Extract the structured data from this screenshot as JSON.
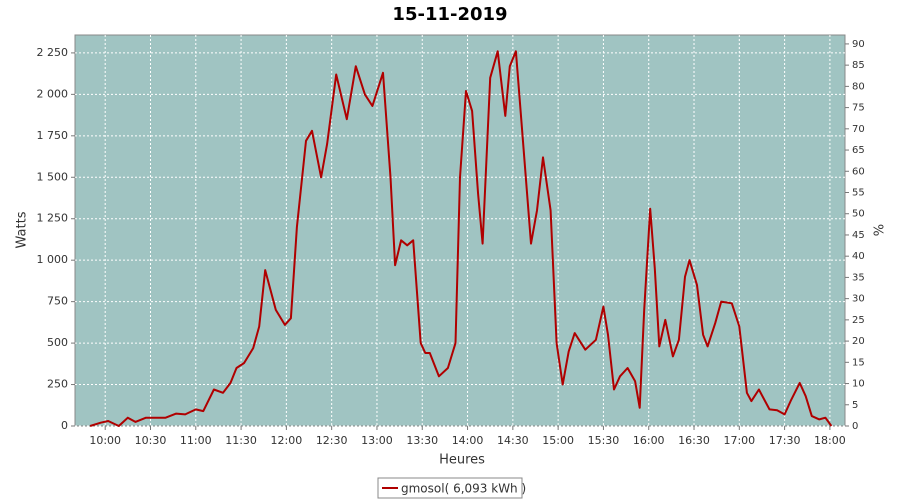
{
  "chart_data": {
    "type": "line",
    "title": "15-11-2019",
    "x_label": "Heures",
    "y_label": "Watts",
    "y2_label": "%",
    "x": [
      "09:50",
      "09:57",
      "10:02",
      "10:09",
      "10:15",
      "10:20",
      "10:27",
      "10:40",
      "10:47",
      "10:53",
      "11:00",
      "11:05",
      "11:12",
      "11:18",
      "11:23",
      "11:27",
      "11:32",
      "11:38",
      "11:42",
      "11:46",
      "11:53",
      "11:59",
      "12:03",
      "12:07",
      "12:13",
      "12:17",
      "12:23",
      "12:27",
      "12:33",
      "12:40",
      "12:46",
      "12:52",
      "12:57",
      "13:04",
      "13:09",
      "13:12",
      "13:16",
      "13:20",
      "13:24",
      "13:29",
      "13:32",
      "13:35",
      "13:41",
      "13:47",
      "13:52",
      "13:55",
      "13:59",
      "14:03",
      "14:07",
      "14:10",
      "14:15",
      "14:20",
      "14:25",
      "14:28",
      "14:32",
      "14:36",
      "14:42",
      "14:46",
      "14:50",
      "14:55",
      "14:59",
      "15:03",
      "15:07",
      "15:11",
      "15:18",
      "15:25",
      "15:30",
      "15:33",
      "15:37",
      "15:41",
      "15:46",
      "15:51",
      "15:54",
      "15:57",
      "16:01",
      "16:04",
      "16:07",
      "16:11",
      "16:16",
      "16:20",
      "16:24",
      "16:27",
      "16:32",
      "16:36",
      "16:39",
      "16:44",
      "16:48",
      "16:55",
      "17:00",
      "17:05",
      "17:08",
      "17:13",
      "17:20",
      "17:25",
      "17:30",
      "17:34",
      "17:40",
      "17:44",
      "17:48",
      "17:53",
      "17:57",
      "18:01"
    ],
    "series": [
      {
        "name": "gmosol( 6,093 kWh )",
        "color": "#b00000",
        "values": [
          0,
          20,
          30,
          0,
          50,
          25,
          50,
          50,
          75,
          70,
          100,
          90,
          220,
          200,
          260,
          350,
          380,
          470,
          600,
          940,
          700,
          610,
          650,
          1200,
          1720,
          1780,
          1500,
          1700,
          2120,
          1850,
          2170,
          2000,
          1930,
          2130,
          1500,
          970,
          1120,
          1090,
          1120,
          500,
          440,
          440,
          300,
          350,
          500,
          1500,
          2020,
          1900,
          1400,
          1100,
          2100,
          2260,
          1870,
          2170,
          2260,
          1800,
          1100,
          1300,
          1620,
          1300,
          500,
          250,
          450,
          560,
          460,
          520,
          720,
          550,
          220,
          300,
          350,
          270,
          110,
          700,
          1310,
          950,
          480,
          640,
          420,
          520,
          900,
          1000,
          850,
          550,
          480,
          620,
          750,
          740,
          600,
          200,
          150,
          220,
          100,
          95,
          70,
          150,
          260,
          180,
          60,
          40,
          50,
          0
        ]
      }
    ],
    "xlim": [
      "09:40",
      "18:10"
    ],
    "xticks": [
      "10:00",
      "10:30",
      "11:00",
      "11:30",
      "12:00",
      "12:30",
      "13:00",
      "13:30",
      "14:00",
      "14:30",
      "15:00",
      "15:30",
      "16:00",
      "16:30",
      "17:00",
      "17:30",
      "18:00"
    ],
    "ylim": [
      0,
      2358
    ],
    "yticks": [
      0,
      250,
      500,
      750,
      {
        "value": 1000,
        "label": "1 000"
      },
      {
        "value": 1250,
        "label": "1 250"
      },
      {
        "value": 1500,
        "label": "1 500"
      },
      {
        "value": 1750,
        "label": "1 750"
      },
      {
        "value": 2000,
        "label": "2 000"
      },
      {
        "value": 2250,
        "label": "2 250"
      }
    ],
    "y2lim": [
      0,
      92.1
    ],
    "y2ticks": [
      0,
      5,
      10,
      15,
      20,
      25,
      30,
      35,
      40,
      45,
      50,
      55,
      60,
      65,
      70,
      75,
      80,
      85,
      90
    ],
    "grid": true,
    "plot_background": "#a0c4c2",
    "legend": "bottom"
  }
}
